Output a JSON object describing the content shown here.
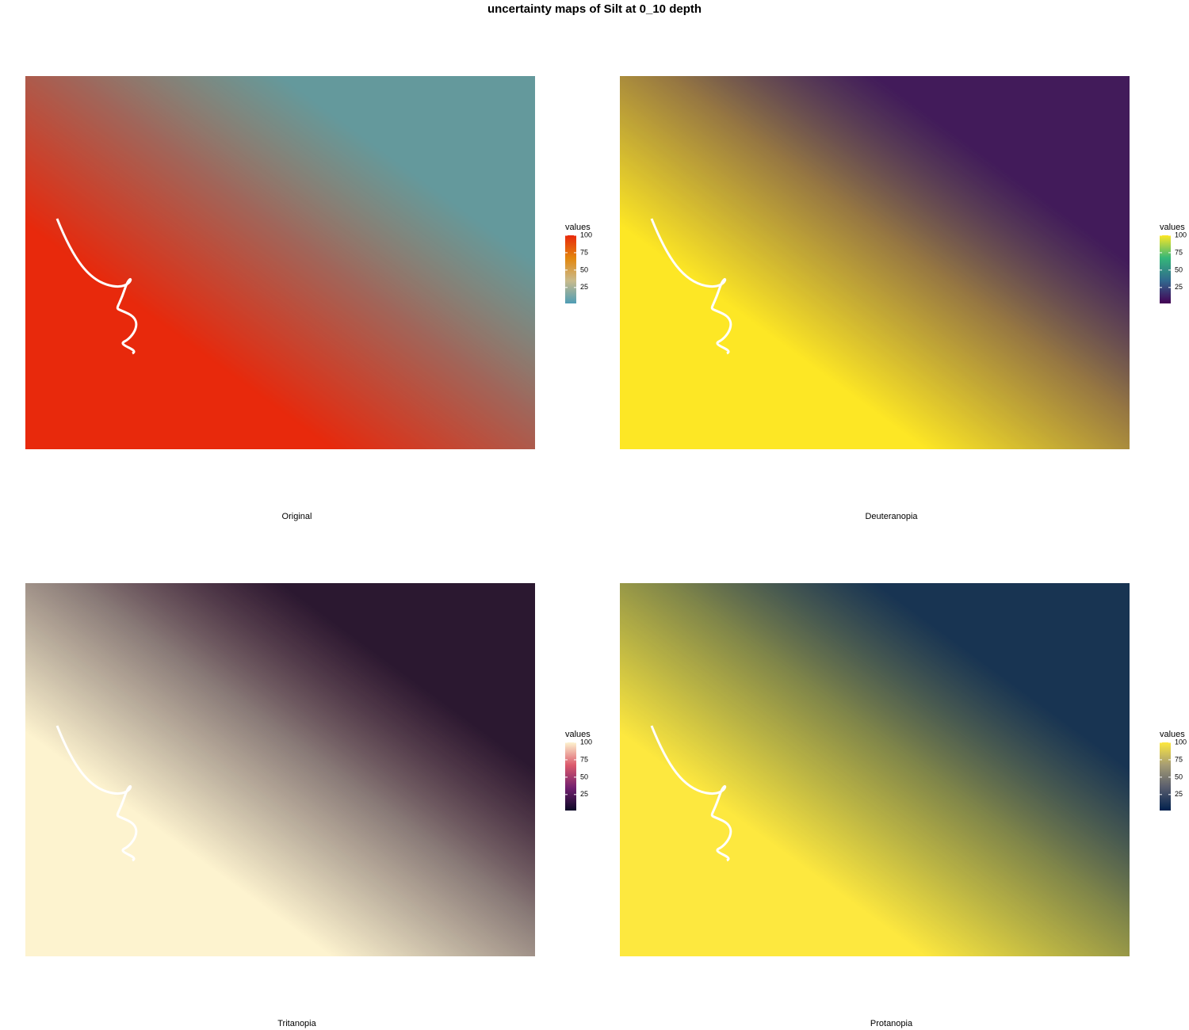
{
  "title": "uncertainty maps of Silt at 0_10 depth",
  "panels": [
    {
      "label": "Original",
      "legend": {
        "title": "values",
        "lim": [
          2,
          100
        ],
        "ticks": [
          25,
          50,
          75,
          100
        ],
        "colors": [
          "#4f9db5",
          "#c9bb8c",
          "#e3860c",
          "#e8290c"
        ]
      }
    },
    {
      "label": "Deuteranopia",
      "legend": {
        "title": "values",
        "lim": [
          2,
          100
        ],
        "ticks": [
          25,
          50,
          75,
          100
        ],
        "colors": [
          "#440154",
          "#31688e",
          "#35b779",
          "#fde725"
        ]
      }
    },
    {
      "label": "Tritanopia",
      "legend": {
        "title": "values",
        "lim": [
          2,
          100
        ],
        "ticks": [
          25,
          50,
          75,
          100
        ],
        "colors": [
          "#0c0826",
          "#72206f",
          "#dc5a6c",
          "#fdf3cf"
        ]
      }
    },
    {
      "label": "Protanopia",
      "legend": {
        "title": "values",
        "lim": [
          2,
          100
        ],
        "ticks": [
          25,
          50,
          75,
          100
        ],
        "colors": [
          "#00204d",
          "#575c6d",
          "#a59c74",
          "#fde83f"
        ]
      }
    }
  ]
}
